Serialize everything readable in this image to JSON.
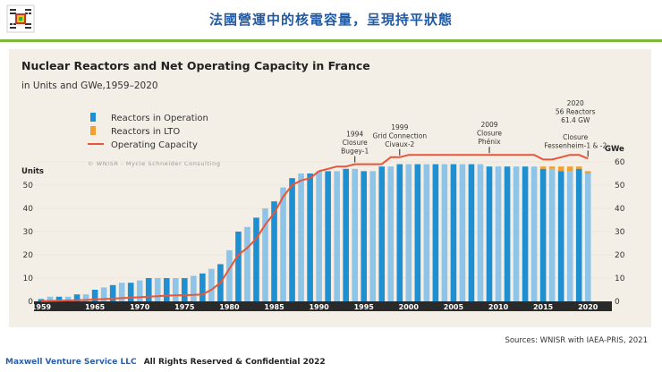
{
  "slide": {
    "title": "法國營運中的核電容量，呈現持平狀態",
    "sources": "Sources: WNISR with IAEA-PRIS, 2021",
    "footer_company": "Maxwell Venture Service LLC",
    "footer_rights": "All Rights Reserved & Confidential 2022"
  },
  "colors": {
    "accent_green": "#7cbb38",
    "title_blue": "#1f5aa6",
    "bar_blue": "#1e8fd0",
    "bar_light": "#8ec4e8",
    "lto_orange": "#f0a030",
    "capacity_red": "#e8553a",
    "panel": "#f4efe6"
  },
  "chart_data": {
    "type": "bar",
    "title": "Nuclear Reactors and Net Operating Capacity in France",
    "subtitle": "in Units and GWe,1959–2020",
    "credit": "© WNISR - Mycle Schneider Consulting",
    "ylabel_left": "Units",
    "ylabel_right": "GWe",
    "ylim": [
      0,
      60
    ],
    "y_ticks_left": [
      0,
      10,
      20,
      30,
      40,
      50
    ],
    "y_ticks_right": [
      0,
      10,
      20,
      30,
      40,
      50,
      60
    ],
    "x_tick_labels": [
      "1959",
      "1965",
      "1970",
      "1975",
      "1980",
      "1985",
      "1990",
      "1995",
      "2000",
      "2005",
      "2010",
      "2015",
      "2020"
    ],
    "legend": [
      {
        "label": "Reactors in Operation",
        "type": "bar"
      },
      {
        "label": "Reactors in LTO",
        "type": "bar"
      },
      {
        "label": "Operating Capacity",
        "type": "line"
      }
    ],
    "years": [
      1959,
      1960,
      1961,
      1962,
      1963,
      1964,
      1965,
      1966,
      1967,
      1968,
      1969,
      1970,
      1971,
      1972,
      1973,
      1974,
      1975,
      1976,
      1977,
      1978,
      1979,
      1980,
      1981,
      1982,
      1983,
      1984,
      1985,
      1986,
      1987,
      1988,
      1989,
      1990,
      1991,
      1992,
      1993,
      1994,
      1995,
      1996,
      1997,
      1998,
      1999,
      2000,
      2001,
      2002,
      2003,
      2004,
      2005,
      2006,
      2007,
      2008,
      2009,
      2010,
      2011,
      2012,
      2013,
      2014,
      2015,
      2016,
      2017,
      2018,
      2019,
      2020
    ],
    "series": [
      {
        "name": "Reactors in Operation",
        "values": [
          1,
          2,
          2,
          2,
          3,
          3,
          5,
          6,
          7,
          8,
          8,
          9,
          10,
          10,
          10,
          10,
          10,
          11,
          12,
          14,
          16,
          22,
          30,
          32,
          36,
          40,
          43,
          49,
          53,
          55,
          55,
          56,
          56,
          56,
          57,
          57,
          56,
          56,
          58,
          58,
          59,
          59,
          59,
          59,
          59,
          59,
          59,
          59,
          59,
          59,
          58,
          58,
          58,
          58,
          58,
          58,
          57,
          57,
          56,
          56,
          57,
          55
        ]
      },
      {
        "name": "Reactors in LTO",
        "values": [
          0,
          0,
          0,
          0,
          0,
          0,
          0,
          0,
          0,
          0,
          0,
          0,
          0,
          0,
          0,
          0,
          0,
          0,
          0,
          0,
          0,
          0,
          0,
          0,
          0,
          0,
          0,
          0,
          0,
          0,
          0,
          0,
          0,
          0,
          0,
          0,
          0,
          0,
          0,
          0,
          0,
          0,
          0,
          0,
          0,
          0,
          0,
          0,
          0,
          0,
          0,
          0,
          0,
          0,
          0,
          0,
          1,
          1,
          2,
          2,
          1,
          1
        ]
      },
      {
        "name": "Operating Capacity (GWe)",
        "values": [
          0.1,
          0.2,
          0.3,
          0.4,
          0.5,
          0.6,
          0.8,
          1,
          1.2,
          1.4,
          1.6,
          1.8,
          2,
          2.2,
          2.5,
          2.6,
          2.7,
          2.8,
          3,
          5,
          8,
          14,
          20,
          23,
          27,
          33,
          38,
          45,
          50,
          52,
          53,
          56,
          57,
          58,
          58,
          59,
          59,
          59,
          59,
          62,
          62,
          63,
          63,
          63,
          63,
          63,
          63,
          63,
          63,
          63,
          63,
          63,
          63,
          63,
          63,
          63,
          61,
          61,
          62,
          63,
          63,
          61.4
        ]
      }
    ],
    "annotations": [
      {
        "year": 1994,
        "lines": [
          "1994",
          "Closure",
          "Bugey-1"
        ]
      },
      {
        "year": 1999,
        "lines": [
          "1999",
          "Grid Connection",
          "Civaux-2"
        ]
      },
      {
        "year": 2009,
        "lines": [
          "2009",
          "Closure",
          "Phénix"
        ]
      },
      {
        "year": 2020,
        "lines": [
          "2020",
          "56 Reactors",
          "61.4 GW",
          "",
          "Closure",
          "Fessenheim-1 & -2"
        ]
      }
    ]
  }
}
